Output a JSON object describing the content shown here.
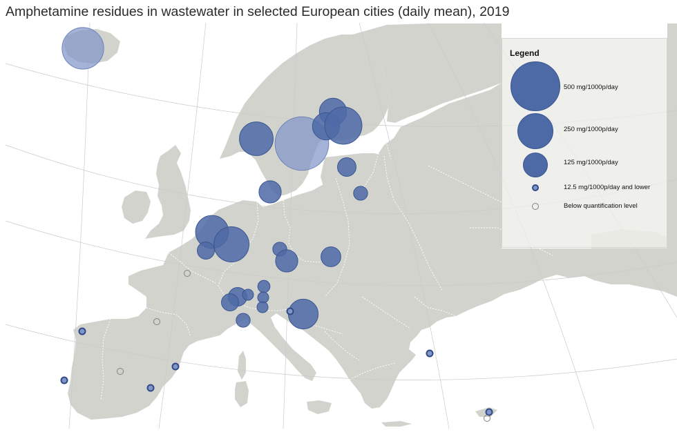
{
  "title": "Amphetamine residues in wastewater in selected European cities (daily mean), 2019",
  "colors": {
    "sea": "#ffffff",
    "land": "#d3d3ce",
    "outside_land": "#e4e4df",
    "border": "#ffffff",
    "bubble_fill": "#4e6aa6",
    "bubble_stroke": "#3a5691",
    "highlighted_fill": "#8196c8",
    "graticule": "#c9c9c9",
    "below_level_stroke": "#808080"
  },
  "legend": {
    "title": "Legend",
    "items": [
      {
        "label": "500 mg/1000p/day",
        "kind": "large"
      },
      {
        "label": "250 mg/1000p/day",
        "kind": "medium"
      },
      {
        "label": "125 mg/1000p/day",
        "kind": "small"
      },
      {
        "label": "12.5 mg/1000p/day and lower",
        "kind": "tiny"
      },
      {
        "label": "Below quantification level",
        "kind": "empty"
      }
    ]
  },
  "map_data": {
    "units": "mg/1000p/day",
    "locations": [
      {
        "region": "Iceland",
        "value": 350,
        "highlighted": true
      },
      {
        "region": "Norway (Oslo)",
        "value": 230,
        "highlighted": false
      },
      {
        "region": "Sweden (Stockholm)",
        "value": 580,
        "highlighted": true
      },
      {
        "region": "Finland (north)",
        "value": 150,
        "highlighted": false
      },
      {
        "region": "Finland (Turku)",
        "value": 150,
        "highlighted": false
      },
      {
        "region": "Finland (Helsinki)",
        "value": 280,
        "highlighted": false
      },
      {
        "region": "Estonia",
        "value": 70,
        "highlighted": false
      },
      {
        "region": "Latvia",
        "value": 40,
        "highlighted": false
      },
      {
        "region": "Denmark",
        "value": 100,
        "highlighted": false
      },
      {
        "region": "Netherlands (Amsterdam)",
        "value": 220,
        "highlighted": false
      },
      {
        "region": "Netherlands (Utrecht)",
        "value": 250,
        "highlighted": false
      },
      {
        "region": "Belgium",
        "value": 60,
        "highlighted": false
      },
      {
        "region": "Germany (Dresden)",
        "value": 40,
        "highlighted": false
      },
      {
        "region": "Czechia",
        "value": 100,
        "highlighted": false
      },
      {
        "region": "Poland",
        "value": 80,
        "highlighted": false
      },
      {
        "region": "Germany (Munich)",
        "value": 30,
        "highlighted": false
      },
      {
        "region": "Switzerland",
        "value": 70,
        "highlighted": false
      },
      {
        "region": "Switzerland (west)",
        "value": 60,
        "highlighted": false
      },
      {
        "region": "Austria",
        "value": 20,
        "highlighted": false
      },
      {
        "region": "Austria (south)",
        "value": 15,
        "highlighted": false
      },
      {
        "region": "Slovenia",
        "value": 20,
        "highlighted": false
      },
      {
        "region": "Croatia",
        "value": 180,
        "highlighted": false
      },
      {
        "region": "Italy (Milan)",
        "value": 10,
        "highlighted": false
      },
      {
        "region": "Spain (Barcelona)",
        "value": 40,
        "highlighted": false
      },
      {
        "region": "Spain (Galicia)",
        "value": 10,
        "highlighted": false
      },
      {
        "region": "Portugal (Lisbon)",
        "value": 10,
        "highlighted": false
      },
      {
        "region": "Spain (Valencia)",
        "value": 10,
        "highlighted": false
      },
      {
        "region": "Turkey (Istanbul)",
        "value": 10,
        "highlighted": false
      },
      {
        "region": "Cyprus (north)",
        "value": 10,
        "highlighted": false
      },
      {
        "region": "Cyprus (south)",
        "value": 10,
        "highlighted": false
      },
      {
        "region": "France (Paris)",
        "value": 0,
        "highlighted": false
      },
      {
        "region": "France (Lyon)",
        "value": 0,
        "highlighted": false
      },
      {
        "region": "Spain (Madrid)",
        "value": 0,
        "highlighted": false
      },
      {
        "region": "Spain (Castellon)",
        "value": 0,
        "highlighted": false
      }
    ]
  }
}
